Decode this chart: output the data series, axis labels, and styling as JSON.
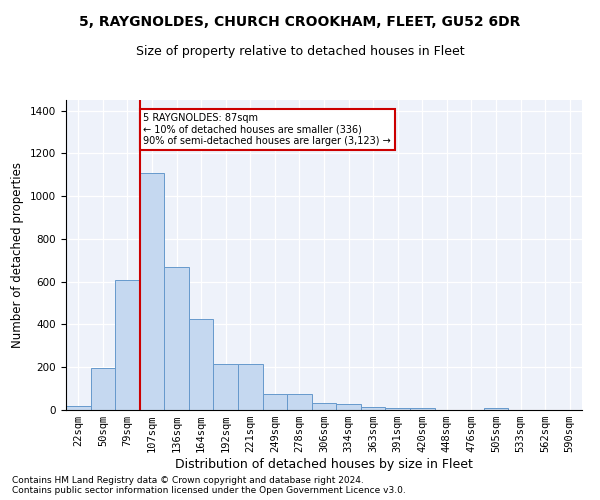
{
  "title": "5, RAYGNOLDES, CHURCH CROOKHAM, FLEET, GU52 6DR",
  "subtitle": "Size of property relative to detached houses in Fleet",
  "xlabel": "Distribution of detached houses by size in Fleet",
  "ylabel": "Number of detached properties",
  "bin_labels": [
    "22sqm",
    "50sqm",
    "79sqm",
    "107sqm",
    "136sqm",
    "164sqm",
    "192sqm",
    "221sqm",
    "249sqm",
    "278sqm",
    "306sqm",
    "334sqm",
    "363sqm",
    "391sqm",
    "420sqm",
    "448sqm",
    "476sqm",
    "505sqm",
    "533sqm",
    "562sqm",
    "590sqm"
  ],
  "bar_values": [
    20,
    195,
    610,
    1110,
    670,
    425,
    215,
    215,
    75,
    75,
    35,
    30,
    15,
    10,
    10,
    0,
    0,
    10,
    0,
    0,
    0
  ],
  "bar_color": "#c5d8f0",
  "bar_edgecolor": "#6699cc",
  "vline_x_index": 3,
  "vline_color": "#cc0000",
  "annotation_text": "5 RAYGNOLDES: 87sqm\n← 10% of detached houses are smaller (336)\n90% of semi-detached houses are larger (3,123) →",
  "annotation_box_color": "#cc0000",
  "ylim": [
    0,
    1450
  ],
  "yticks": [
    0,
    200,
    400,
    600,
    800,
    1000,
    1200,
    1400
  ],
  "background_color": "#eef2fa",
  "footer_text": "Contains HM Land Registry data © Crown copyright and database right 2024.\nContains public sector information licensed under the Open Government Licence v3.0.",
  "title_fontsize": 10,
  "subtitle_fontsize": 9,
  "ylabel_fontsize": 8.5,
  "xlabel_fontsize": 9,
  "tick_fontsize": 7.5,
  "footer_fontsize": 6.5
}
